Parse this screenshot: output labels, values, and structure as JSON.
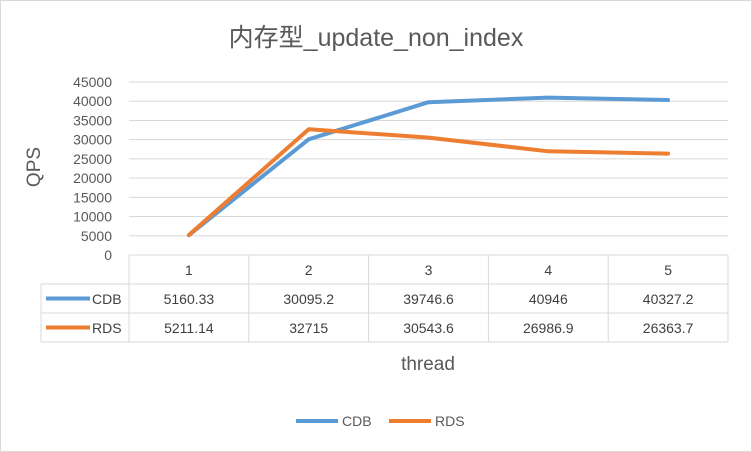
{
  "chart_data": {
    "type": "line",
    "title": "内存型_update_non_index",
    "xlabel": "thread",
    "ylabel": "QPS",
    "categories": [
      "1",
      "2",
      "3",
      "4",
      "5"
    ],
    "ylim": [
      0,
      45000
    ],
    "yticks": [
      "0",
      "5000",
      "10000",
      "15000",
      "20000",
      "25000",
      "30000",
      "35000",
      "40000",
      "45000"
    ],
    "grid": true,
    "legend_position": "bottom",
    "data_table": true,
    "series": [
      {
        "name": "CDB",
        "color": "#5b9bd5",
        "values": [
          5160.33,
          30095.2,
          39746.6,
          40946,
          40327.2
        ],
        "labels": [
          "5160.33",
          "30095.2",
          "39746.6",
          "40946",
          "40327.2"
        ]
      },
      {
        "name": "RDS",
        "color": "#ed7d31",
        "values": [
          5211.14,
          32715,
          30543.6,
          26986.9,
          26363.7
        ],
        "labels": [
          "5211.14",
          "32715",
          "30543.6",
          "26986.9",
          "26363.7"
        ]
      }
    ]
  }
}
